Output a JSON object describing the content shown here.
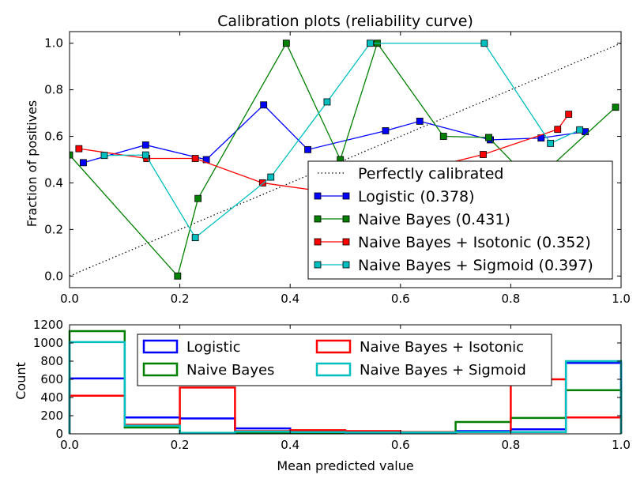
{
  "chart_data": [
    {
      "type": "line",
      "title": "Calibration plots  (reliability curve)",
      "xlabel": "",
      "ylabel": "Fraction of positives",
      "xlim": [
        0.0,
        1.0
      ],
      "ylim": [
        -0.05,
        1.05
      ],
      "x_ticks": [
        "0.0",
        "0.2",
        "0.4",
        "0.6",
        "0.8",
        "1.0"
      ],
      "y_ticks": [
        "0.0",
        "0.2",
        "0.4",
        "0.6",
        "0.8",
        "1.0"
      ],
      "grid": false,
      "legend_position": "lower-right",
      "series": [
        {
          "name": "Perfectly calibrated",
          "color": "#000000",
          "style": "dotted",
          "points": [
            [
              0.0,
              0.0
            ],
            [
              1.0,
              1.0
            ]
          ]
        },
        {
          "name": "Logistic (0.378)",
          "color": "#0000ff",
          "style": "solid-marker",
          "points": [
            [
              0.025,
              0.487
            ],
            [
              0.138,
              0.563
            ],
            [
              0.248,
              0.5
            ],
            [
              0.352,
              0.735
            ],
            [
              0.432,
              0.543
            ],
            [
              0.573,
              0.624
            ],
            [
              0.635,
              0.665
            ],
            [
              0.763,
              0.585
            ],
            [
              0.855,
              0.593
            ],
            [
              0.935,
              0.62
            ]
          ]
        },
        {
          "name": "Naive Bayes (0.431)",
          "color": "#008000",
          "style": "solid-marker",
          "points": [
            [
              0.0,
              0.52
            ],
            [
              0.196,
              0.0
            ],
            [
              0.233,
              0.333
            ],
            [
              0.393,
              1.0
            ],
            [
              0.491,
              0.5
            ],
            [
              0.558,
              1.0
            ],
            [
              0.678,
              0.6
            ],
            [
              0.76,
              0.595
            ],
            [
              0.84,
              0.4
            ],
            [
              0.99,
              0.725
            ]
          ]
        },
        {
          "name": "Naive Bayes + Isotonic (0.352)",
          "color": "#ff0000",
          "style": "solid-marker",
          "points": [
            [
              0.017,
              0.547
            ],
            [
              0.14,
              0.505
            ],
            [
              0.228,
              0.505
            ],
            [
              0.35,
              0.4
            ],
            [
              0.47,
              0.36
            ],
            [
              0.75,
              0.522
            ],
            [
              0.885,
              0.63
            ],
            [
              0.905,
              0.695
            ]
          ]
        },
        {
          "name": "Naive Bayes + Sigmoid (0.397)",
          "color": "#00bfbf",
          "style": "solid-marker",
          "points": [
            [
              0.063,
              0.518
            ],
            [
              0.138,
              0.52
            ],
            [
              0.228,
              0.165
            ],
            [
              0.365,
              0.425
            ],
            [
              0.467,
              0.748
            ],
            [
              0.545,
              1.0
            ],
            [
              0.752,
              1.0
            ],
            [
              0.872,
              0.57
            ],
            [
              0.925,
              0.628
            ]
          ]
        }
      ]
    },
    {
      "type": "histogram",
      "title": "",
      "xlabel": "Mean predicted value",
      "ylabel": "Count",
      "xlim": [
        0.0,
        1.0
      ],
      "ylim": [
        0,
        1200
      ],
      "x_ticks": [
        "0.0",
        "0.2",
        "0.4",
        "0.6",
        "0.8",
        "1.0"
      ],
      "y_ticks": [
        "0",
        "200",
        "400",
        "600",
        "800",
        "1000",
        "1200"
      ],
      "bin_edges": [
        0.0,
        0.1,
        0.2,
        0.3,
        0.4,
        0.5,
        0.6,
        0.7,
        0.8,
        0.9,
        1.0
      ],
      "grid": false,
      "legend_position": "top-center",
      "legend_columns": 2,
      "series": [
        {
          "name": "Logistic",
          "color": "#0000ff",
          "counts": [
            610,
            180,
            170,
            60,
            30,
            20,
            15,
            30,
            50,
            780
          ]
        },
        {
          "name": "Naive Bayes",
          "color": "#008000",
          "counts": [
            1130,
            70,
            10,
            10,
            10,
            10,
            10,
            130,
            175,
            480
          ]
        },
        {
          "name": "Naive Bayes + Isotonic",
          "color": "#ff0000",
          "counts": [
            420,
            100,
            510,
            30,
            40,
            30,
            20,
            20,
            600,
            180
          ]
        },
        {
          "name": "Naive Bayes + Sigmoid",
          "color": "#00bfbf",
          "counts": [
            1010,
            90,
            10,
            25,
            20,
            15,
            15,
            20,
            20,
            800
          ]
        }
      ]
    }
  ]
}
